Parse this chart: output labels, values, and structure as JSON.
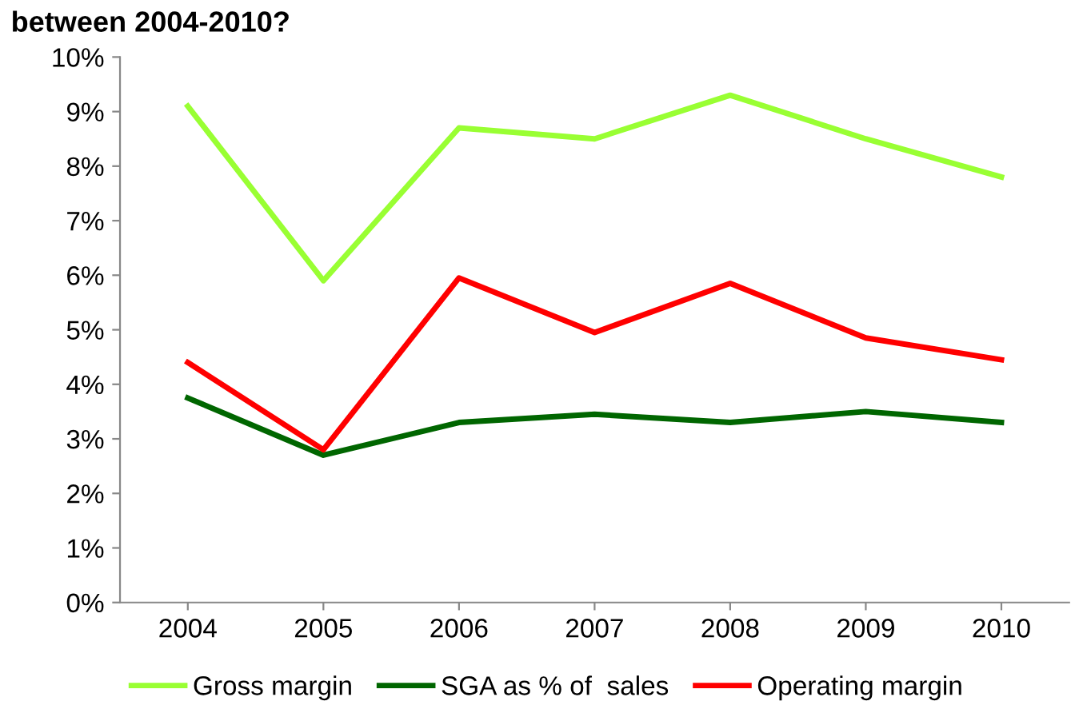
{
  "chart_data": {
    "type": "line",
    "title": "between 2004-2010?",
    "categories": [
      "2004",
      "2005",
      "2006",
      "2007",
      "2008",
      "2009",
      "2010"
    ],
    "series": [
      {
        "name": "Gross margin",
        "color": "#99ff33",
        "values": [
          9.1,
          5.9,
          8.7,
          8.5,
          9.3,
          8.5,
          7.8
        ]
      },
      {
        "name": "SGA as % of  sales",
        "color": "#006600",
        "values": [
          3.75,
          2.7,
          3.3,
          3.45,
          3.3,
          3.5,
          3.3
        ]
      },
      {
        "name": "Operating margin",
        "color": "#ff0000",
        "values": [
          4.4,
          2.8,
          5.95,
          4.95,
          5.85,
          4.85,
          4.45
        ]
      }
    ],
    "ylim": [
      0,
      10
    ],
    "yticks": [
      {
        "value": 0,
        "label": "0%"
      },
      {
        "value": 1,
        "label": "1%"
      },
      {
        "value": 2,
        "label": "2%"
      },
      {
        "value": 3,
        "label": "3%"
      },
      {
        "value": 4,
        "label": "4%"
      },
      {
        "value": 5,
        "label": "5%"
      },
      {
        "value": 6,
        "label": "6%"
      },
      {
        "value": 7,
        "label": "7%"
      },
      {
        "value": 8,
        "label": "8%"
      },
      {
        "value": 9,
        "label": "9%"
      },
      {
        "value": 10,
        "label": "10%"
      }
    ],
    "grid": false,
    "legend": "bottom",
    "marker": "none"
  }
}
